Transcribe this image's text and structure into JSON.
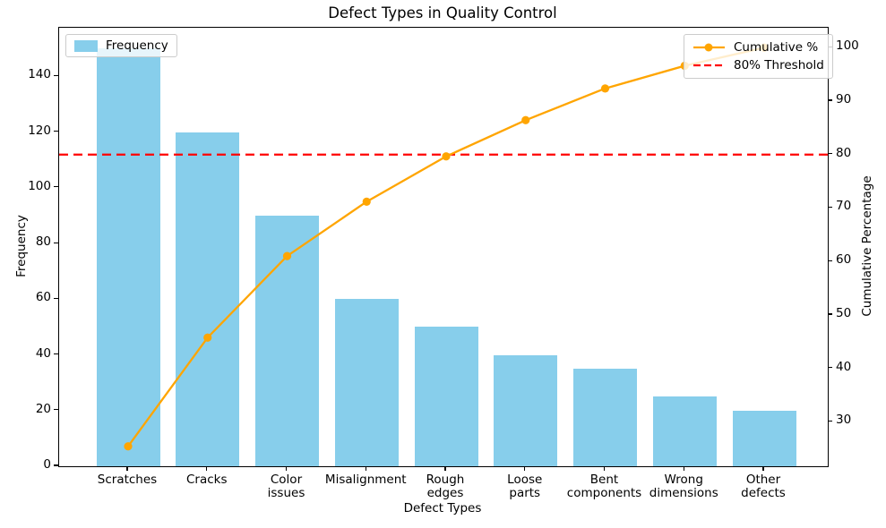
{
  "figure": {
    "title": "Defect Types in Quality Control",
    "xlabel": "Defect Types",
    "ylabel_left": "Frequency",
    "ylabel_right": "Cumulative Percentage"
  },
  "legend_frequency": {
    "label": "Frequency",
    "swatch_color": "#87CEEB"
  },
  "legend_cumulative": {
    "cumulative_label": "Cumulative %",
    "threshold_label": "80% Threshold"
  },
  "chart_data": {
    "type": "bar",
    "subtype": "pareto",
    "title": "Defect Types in Quality Control",
    "xlabel": "Defect Types",
    "categories": [
      "Scratches",
      "Cracks",
      "Color\nissues",
      "Misalignment",
      "Rough\nedges",
      "Loose\nparts",
      "Bent\ncomponents",
      "Wrong\ndimensions",
      "Other\ndefects"
    ],
    "series": [
      {
        "name": "Frequency",
        "type": "bar",
        "axis": "left",
        "color": "#87CEEB",
        "values": [
          150,
          120,
          90,
          60,
          50,
          40,
          35,
          25,
          20
        ]
      },
      {
        "name": "Cumulative %",
        "type": "line",
        "axis": "right",
        "color": "#FFA500",
        "marker": "circle",
        "values": [
          25.42,
          45.76,
          61.02,
          71.19,
          79.66,
          86.44,
          92.37,
          96.61,
          100.0
        ]
      }
    ],
    "threshold": {
      "label": "80% Threshold",
      "value": 80,
      "color": "#FF0000",
      "style": "dashed"
    },
    "left_axis": {
      "label": "Frequency",
      "ticks": [
        0,
        20,
        40,
        60,
        80,
        100,
        120,
        140
      ],
      "ylim": [
        0,
        157.5
      ]
    },
    "right_axis": {
      "label": "Cumulative Percentage",
      "ticks": [
        30,
        40,
        50,
        60,
        70,
        80,
        90,
        100
      ],
      "ylim": [
        21.69,
        103.73
      ]
    },
    "legend_left_position": "upper left",
    "legend_right_position": "upper right",
    "grid": false
  }
}
